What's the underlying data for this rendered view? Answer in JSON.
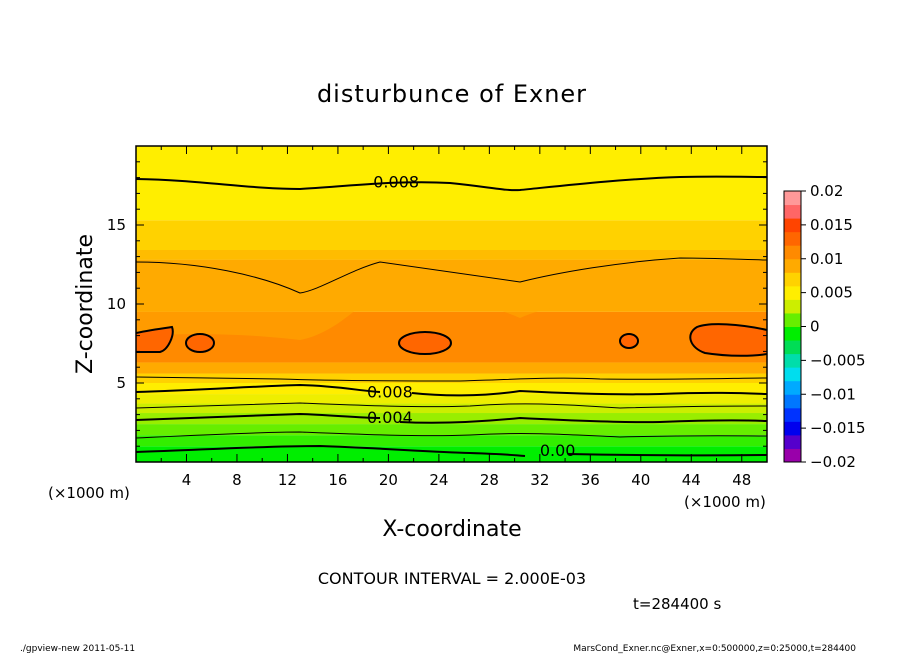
{
  "chart_data": {
    "type": "contour",
    "title": "disturbunce of Exner",
    "xlabel": "X-coordinate",
    "ylabel": "Z-coordinate",
    "x_unit": "(×1000 m)",
    "y_unit": "(×1000 m)",
    "xlim": [
      0,
      50
    ],
    "ylim": [
      0,
      20
    ],
    "x_ticks": [
      "4",
      "8",
      "12",
      "16",
      "20",
      "24",
      "28",
      "32",
      "36",
      "40",
      "44",
      "48"
    ],
    "y_ticks": [
      "5",
      "10",
      "15"
    ],
    "contour_interval_text": "CONTOUR INTERVAL = 2.000E-03",
    "time_text": "t=284400 s",
    "contour_labels": [
      {
        "text": "0.008",
        "x": 18.8,
        "z": 17.7
      },
      {
        "text": "0.008",
        "x": 18.3,
        "z": 4.4
      },
      {
        "text": "0.004",
        "x": 18.3,
        "z": 2.8
      },
      {
        "text": "0.00",
        "x": 32.0,
        "z": 0.7
      }
    ],
    "colorbar": {
      "ticks": [
        "0.02",
        "0.015",
        "0.01",
        "0.005",
        "0",
        "−0.005",
        "−0.01",
        "−0.015",
        "−0.02"
      ],
      "range": [
        -0.02,
        0.02
      ],
      "colors": [
        "#9900aa",
        "#5500cc",
        "#0000ee",
        "#0033ff",
        "#0077ff",
        "#00aaff",
        "#00ddee",
        "#00ddaa",
        "#00dd55",
        "#00ee00",
        "#66ee00",
        "#ccee00",
        "#ffee00",
        "#ffd200",
        "#ffaa00",
        "#ff8a00",
        "#ff6600",
        "#ff4400",
        "#ff6666",
        "#ff9999"
      ]
    },
    "field_levels": [
      {
        "z": [
          0,
          1.0
        ],
        "color": "#00ee00"
      },
      {
        "z": [
          1.0,
          1.7
        ],
        "color": "#33ee00"
      },
      {
        "z": [
          1.7,
          2.4
        ],
        "color": "#66ee00"
      },
      {
        "z": [
          2.4,
          3.1
        ],
        "color": "#99ee00"
      },
      {
        "z": [
          3.1,
          3.7
        ],
        "color": "#ccee00"
      },
      {
        "z": [
          3.7,
          4.3
        ],
        "color": "#eeee00"
      },
      {
        "z": [
          4.3,
          5.0
        ],
        "color": "#ffee00"
      },
      {
        "z": [
          5.0,
          5.6
        ],
        "color": "#ffd200"
      },
      {
        "z": [
          5.6,
          6.3
        ],
        "color": "#ffaa00"
      },
      {
        "z": [
          6.3,
          9.5
        ],
        "color": "#ff8a00"
      },
      {
        "z": [
          9.5,
          12.8
        ],
        "color": "#ffaa00"
      },
      {
        "z": [
          12.8,
          15.3
        ],
        "color": "#ffd200"
      },
      {
        "z": [
          15.3,
          20.0
        ],
        "color": "#ffee00"
      }
    ]
  },
  "footer": {
    "left": "./gpview-new   2011-05-11",
    "right": "MarsCond_Exner.nc@Exner,x=0:500000,z=0:25000,t=284400"
  }
}
